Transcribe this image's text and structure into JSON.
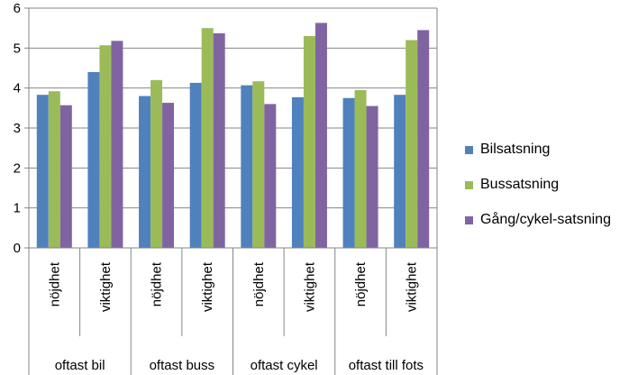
{
  "chart_data": {
    "type": "bar",
    "groups": [
      {
        "label": "oftast bil",
        "categories": [
          "nöjdhet",
          "viktighet"
        ]
      },
      {
        "label": "oftast buss",
        "categories": [
          "nöjdhet",
          "viktighet"
        ]
      },
      {
        "label": "oftast cykel",
        "categories": [
          "nöjdhet",
          "viktighet"
        ]
      },
      {
        "label": "oftast till fots",
        "categories": [
          "nöjdhet",
          "viktighet"
        ]
      }
    ],
    "categories": [
      "nöjdhet",
      "viktighet",
      "nöjdhet",
      "viktighet",
      "nöjdhet",
      "viktighet",
      "nöjdhet",
      "viktighet"
    ],
    "series": [
      {
        "name": "Bilsatsning",
        "color": "#4F81BD",
        "values": [
          3.83,
          4.4,
          3.8,
          4.13,
          4.07,
          3.77,
          3.75,
          3.83
        ]
      },
      {
        "name": "Bussatsning",
        "color": "#9BBB59",
        "values": [
          3.92,
          5.07,
          4.2,
          5.5,
          4.17,
          5.3,
          3.95,
          5.2
        ]
      },
      {
        "name": "Gång/cykel-satsning",
        "color": "#8064A2",
        "values": [
          3.57,
          5.18,
          3.63,
          5.37,
          3.6,
          5.63,
          3.55,
          5.45
        ]
      }
    ],
    "yticks": [
      "0",
      "1",
      "2",
      "3",
      "4",
      "5",
      "6"
    ],
    "ylim": [
      0,
      6
    ],
    "grid": true,
    "legend_position": "right"
  }
}
